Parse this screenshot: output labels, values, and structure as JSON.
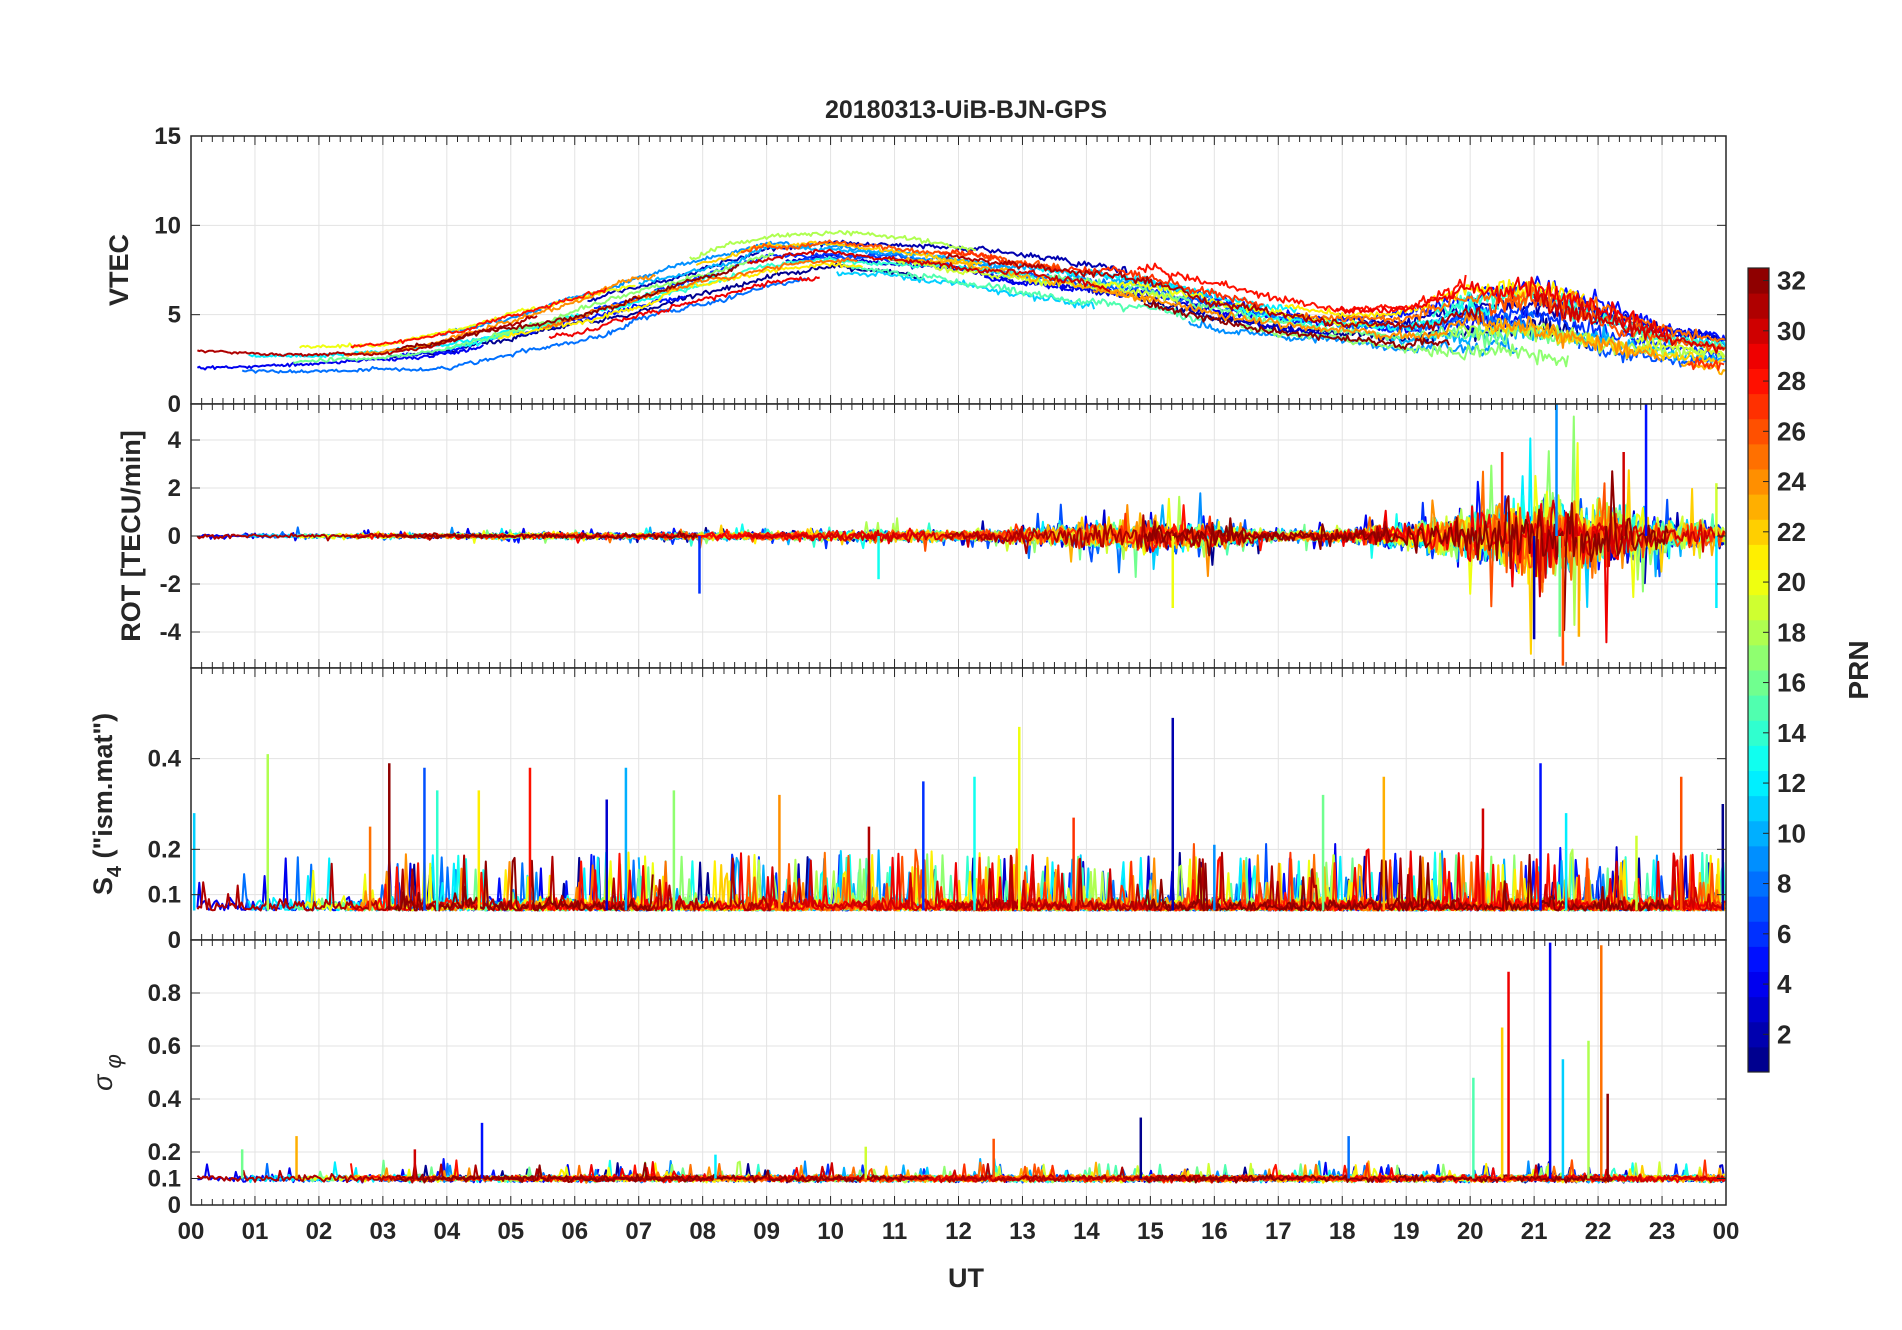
{
  "chart_data": {
    "type": "line",
    "title": "20180313-UiB-BJN-GPS",
    "xlabel": "UT",
    "x_tick_labels": [
      "00",
      "01",
      "02",
      "03",
      "04",
      "05",
      "06",
      "07",
      "08",
      "09",
      "10",
      "11",
      "12",
      "13",
      "14",
      "15",
      "16",
      "17",
      "18",
      "19",
      "20",
      "21",
      "22",
      "23",
      "00"
    ],
    "xlim_hours": [
      0,
      24
    ],
    "grid": true,
    "series_count": 32,
    "panels": [
      {
        "id": "vtec",
        "ylabel": "VTEC",
        "ylim": [
          0,
          15
        ],
        "y_ticks": [
          0,
          5,
          10,
          15
        ],
        "y_tick_labels": [
          "0",
          "5",
          "10",
          "15"
        ],
        "envelope": {
          "x_hours": [
            0,
            1,
            2,
            3,
            4,
            5,
            6,
            7,
            8,
            9,
            10,
            11,
            12,
            13,
            14,
            15,
            16,
            17,
            18,
            19,
            20,
            21,
            22,
            23,
            24
          ],
          "level": [
            2.6,
            2.6,
            2.7,
            2.9,
            3.4,
            4.3,
            5.2,
            6.2,
            7.2,
            8.3,
            8.6,
            8.3,
            7.9,
            7.4,
            7.0,
            6.5,
            5.6,
            4.9,
            4.5,
            4.4,
            5.2,
            5.4,
            4.6,
            3.7,
            3.2
          ],
          "spread": [
            0.9,
            0.8,
            0.7,
            0.8,
            1.2,
            1.4,
            1.5,
            1.6,
            1.6,
            1.5,
            1.3,
            1.2,
            1.3,
            1.4,
            1.4,
            1.4,
            1.3,
            1.2,
            1.0,
            1.3,
            2.0,
            2.2,
            2.0,
            1.6,
            1.2
          ],
          "noise": [
            0.15,
            0.15,
            0.15,
            0.15,
            0.15,
            0.2,
            0.2,
            0.2,
            0.2,
            0.2,
            0.2,
            0.2,
            0.25,
            0.3,
            0.35,
            0.4,
            0.4,
            0.35,
            0.3,
            0.4,
            0.8,
            1.0,
            0.9,
            0.6,
            0.4
          ]
        }
      },
      {
        "id": "rot",
        "ylabel": "ROT [TECU/min]",
        "ylim": [
          -5.5,
          5.5
        ],
        "y_ticks": [
          -4,
          -2,
          0,
          2,
          4
        ],
        "y_tick_labels": [
          "-4",
          "-2",
          "0",
          "2",
          "4"
        ],
        "envelope": {
          "x_hours": [
            0,
            1,
            2,
            3,
            4,
            5,
            6,
            7,
            8,
            9,
            10,
            11,
            12,
            13,
            14,
            15,
            16,
            17,
            18,
            19,
            20,
            21,
            22,
            23,
            24
          ],
          "noise": [
            0.08,
            0.08,
            0.08,
            0.08,
            0.08,
            0.1,
            0.1,
            0.1,
            0.12,
            0.12,
            0.15,
            0.2,
            0.15,
            0.25,
            0.4,
            0.5,
            0.35,
            0.15,
            0.2,
            0.4,
            0.8,
            1.3,
            1.1,
            0.6,
            0.3
          ]
        },
        "peaks": [
          {
            "x": 7.95,
            "y": -2.4
          },
          {
            "x": 10.75,
            "y": -1.8
          },
          {
            "x": 15.35,
            "y": -3.0
          },
          {
            "x": 20.5,
            "y": 3.5
          },
          {
            "x": 21.0,
            "y": -4.3
          },
          {
            "x": 21.35,
            "y": 5.5
          },
          {
            "x": 21.4,
            "y": -4.2
          },
          {
            "x": 21.7,
            "y": -4.2
          },
          {
            "x": 22.4,
            "y": 3.5
          },
          {
            "x": 22.75,
            "y": 5.5
          },
          {
            "x": 23.85,
            "y": -3.0
          },
          {
            "x": 23.85,
            "y": 2.2
          },
          {
            "x": 21.45,
            "y": -5.4
          }
        ]
      },
      {
        "id": "s4",
        "ylabel": "S_4 (\"ism.mat\")",
        "ylim": [
          0,
          0.6
        ],
        "y_ticks": [
          0,
          0.1,
          0.2,
          0.4
        ],
        "y_tick_labels": [
          "0",
          "0.1",
          "0.2",
          "0.4"
        ],
        "baseline": 0.065,
        "peaks": [
          {
            "x": 0.05,
            "y": 0.28
          },
          {
            "x": 1.2,
            "y": 0.41
          },
          {
            "x": 2.8,
            "y": 0.25
          },
          {
            "x": 3.1,
            "y": 0.39
          },
          {
            "x": 3.65,
            "y": 0.38
          },
          {
            "x": 3.85,
            "y": 0.33
          },
          {
            "x": 4.5,
            "y": 0.33
          },
          {
            "x": 5.3,
            "y": 0.38
          },
          {
            "x": 6.5,
            "y": 0.31
          },
          {
            "x": 6.8,
            "y": 0.38
          },
          {
            "x": 7.55,
            "y": 0.33
          },
          {
            "x": 9.2,
            "y": 0.32
          },
          {
            "x": 10.6,
            "y": 0.25
          },
          {
            "x": 11.45,
            "y": 0.35
          },
          {
            "x": 12.25,
            "y": 0.36
          },
          {
            "x": 12.95,
            "y": 0.47
          },
          {
            "x": 13.8,
            "y": 0.27
          },
          {
            "x": 15.35,
            "y": 0.49
          },
          {
            "x": 16.0,
            "y": 0.21
          },
          {
            "x": 17.7,
            "y": 0.32
          },
          {
            "x": 18.65,
            "y": 0.36
          },
          {
            "x": 20.2,
            "y": 0.29
          },
          {
            "x": 21.1,
            "y": 0.39
          },
          {
            "x": 21.5,
            "y": 0.28
          },
          {
            "x": 22.6,
            "y": 0.23
          },
          {
            "x": 23.3,
            "y": 0.36
          },
          {
            "x": 23.95,
            "y": 0.3
          }
        ]
      },
      {
        "id": "sigma_phi",
        "ylabel": "σ_φ",
        "ylim": [
          0,
          1
        ],
        "y_ticks": [
          0,
          0.1,
          0.2,
          0.4,
          0.6,
          0.8
        ],
        "y_tick_labels": [
          "0",
          "0.1",
          "0.2",
          "0.4",
          "0.6",
          "0.8"
        ],
        "baseline": 0.1,
        "peaks": [
          {
            "x": 0.8,
            "y": 0.21
          },
          {
            "x": 1.65,
            "y": 0.26
          },
          {
            "x": 3.5,
            "y": 0.21
          },
          {
            "x": 4.55,
            "y": 0.31
          },
          {
            "x": 8.2,
            "y": 0.19
          },
          {
            "x": 10.55,
            "y": 0.22
          },
          {
            "x": 12.55,
            "y": 0.25
          },
          {
            "x": 14.85,
            "y": 0.33
          },
          {
            "x": 18.1,
            "y": 0.26
          },
          {
            "x": 20.05,
            "y": 0.48
          },
          {
            "x": 20.5,
            "y": 0.67
          },
          {
            "x": 20.6,
            "y": 0.88
          },
          {
            "x": 21.25,
            "y": 0.99
          },
          {
            "x": 21.45,
            "y": 0.55
          },
          {
            "x": 21.85,
            "y": 0.62
          },
          {
            "x": 22.05,
            "y": 0.98
          },
          {
            "x": 22.15,
            "y": 0.42
          }
        ]
      }
    ],
    "colorbar": {
      "label": "PRN",
      "colormap": "jet",
      "range": [
        1,
        32
      ],
      "ticks": [
        2,
        4,
        6,
        8,
        10,
        12,
        14,
        16,
        18,
        20,
        22,
        24,
        26,
        28,
        30,
        32
      ],
      "tick_labels": [
        "2",
        "4",
        "6",
        "8",
        "10",
        "12",
        "14",
        "16",
        "18",
        "20",
        "22",
        "24",
        "26",
        "28",
        "30",
        "32"
      ],
      "levels": 32
    }
  }
}
